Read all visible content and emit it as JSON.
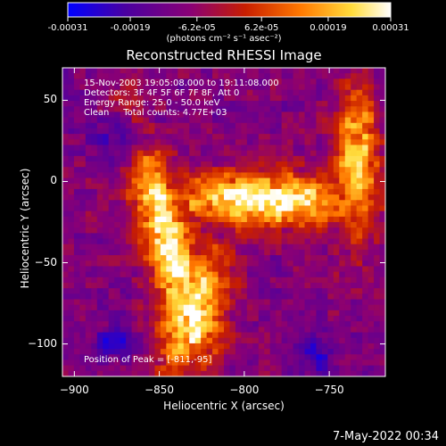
{
  "colorbar": {
    "tick_labels": [
      "-0.00031",
      "-0.00019",
      "-6.2e-05",
      "6.2e-05",
      "0.00019",
      "0.00031"
    ],
    "tick_values": [
      -0.00031,
      -0.00019,
      -6.2e-05,
      6.2e-05,
      0.00019,
      0.00031
    ],
    "unit_label": "(photons cm⁻² s⁻¹ asec⁻²)",
    "colors": [
      "#0000ff",
      "#4b00a0",
      "#8a0075",
      "#c81e00",
      "#ff7800",
      "#ffdc3c",
      "#ffffff"
    ]
  },
  "chart_data": {
    "type": "heatmap",
    "title": "Reconstructed RHESSI Image",
    "xlabel": "Heliocentric X (arcsec)",
    "ylabel": "Heliocentric Y (arcsec)",
    "xlim": [
      -907,
      -717
    ],
    "ylim": [
      -120,
      70
    ],
    "x_ticks": [
      -900,
      -850,
      -800,
      -750
    ],
    "x_tick_labels": [
      "−900",
      "−850",
      "−800",
      "−750"
    ],
    "y_ticks": [
      50,
      0,
      -50,
      -100
    ],
    "y_tick_labels": [
      "50",
      "0",
      "−50",
      "−100"
    ],
    "annotations": [
      "15-Nov-2003 19:05:08.000 to 19:11:08.000",
      "Detectors: 3F 4F 5F 6F 7F 8F, Att 0",
      "Energy Range: 25.0 - 50.0 keV",
      "Clean     Total counts: 4.77E+03"
    ],
    "peak_label": "Position of Peak = [-811,-95]",
    "peak_position": [
      -811,
      -95
    ],
    "count_range": [
      -0.00031,
      0.00031
    ],
    "grid": false
  },
  "footer": {
    "datestamp": "7-May-2022 00:34"
  }
}
